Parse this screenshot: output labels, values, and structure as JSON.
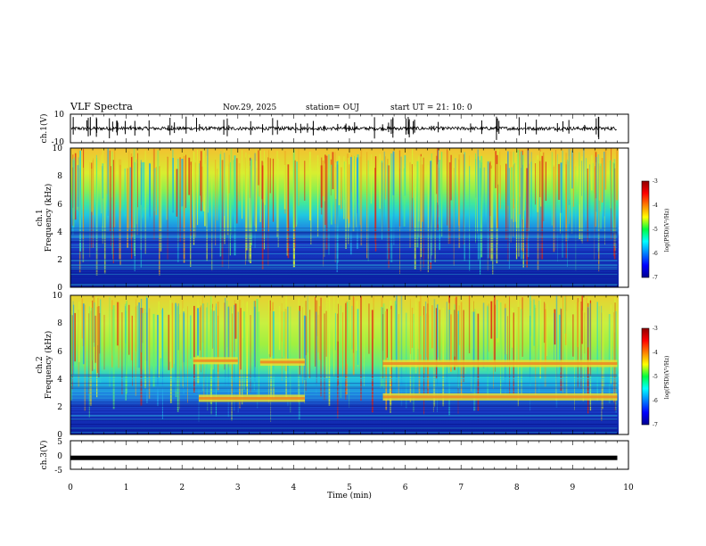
{
  "header": {
    "title": "VLF Spectra",
    "date": "Nov.29, 2025",
    "station": "station= OUJ",
    "start": "start  UT  =   21: 10: 0"
  },
  "chart_data": {
    "type": "heatmap",
    "title": "VLF Spectra",
    "xlabel": "Time  (min)",
    "xlim": [
      0,
      10
    ],
    "xticks": [
      "0",
      "1",
      "2",
      "3",
      "4",
      "5",
      "6",
      "7",
      "8",
      "9",
      "10"
    ],
    "data_end_min": 9.8,
    "panels": [
      {
        "name": "ch1-voltage",
        "kind": "waveform",
        "ylabel": "ch.1(V)",
        "ylim": [
          -10,
          10
        ],
        "yticks": [
          "10",
          "-10"
        ],
        "baseline": 0,
        "noise_amplitude": 1.2
      },
      {
        "name": "ch1-spectrogram",
        "kind": "spectrogram",
        "ylabel_line1": "ch.1",
        "ylabel_line2": "Frequency  (kHz)",
        "ylim": [
          0,
          10
        ],
        "yticks": [
          "0",
          "2",
          "4",
          "6",
          "8",
          "10"
        ],
        "colorbar": {
          "label": "log(PSD)(V²/Hz)",
          "range": [
            -7,
            -3
          ],
          "ticks": [
            "-3",
            "-4",
            "-5",
            "-6",
            "-7"
          ]
        }
      },
      {
        "name": "ch2-spectrogram",
        "kind": "spectrogram",
        "ylabel_line1": "ch.2",
        "ylabel_line2": "Frequency  (kHz)",
        "ylim": [
          0,
          10
        ],
        "yticks": [
          "0",
          "2",
          "4",
          "6",
          "8",
          "10"
        ],
        "emission_bands_khz": [
          {
            "from_min": 2.2,
            "to_min": 3.0,
            "freq": 5.3
          },
          {
            "from_min": 3.4,
            "to_min": 4.2,
            "freq": 5.2
          },
          {
            "from_min": 2.3,
            "to_min": 4.2,
            "freq": 2.6
          },
          {
            "from_min": 5.6,
            "to_min": 9.8,
            "freq": 5.1
          },
          {
            "from_min": 5.6,
            "to_min": 9.8,
            "freq": 2.7
          }
        ],
        "colorbar": {
          "label": "log(PSD)(V²/Hz)",
          "range": [
            -7,
            -3
          ],
          "ticks": [
            "-3",
            "-4",
            "-5",
            "-6",
            "-7"
          ]
        }
      },
      {
        "name": "ch3-voltage",
        "kind": "constant-line",
        "ylabel": "ch.3(V)",
        "ylim": [
          -5,
          5
        ],
        "yticks": [
          "5",
          "0",
          "-5"
        ],
        "value": -1
      }
    ]
  },
  "colors": {
    "background": "#ffffff",
    "ink": "#000000"
  }
}
